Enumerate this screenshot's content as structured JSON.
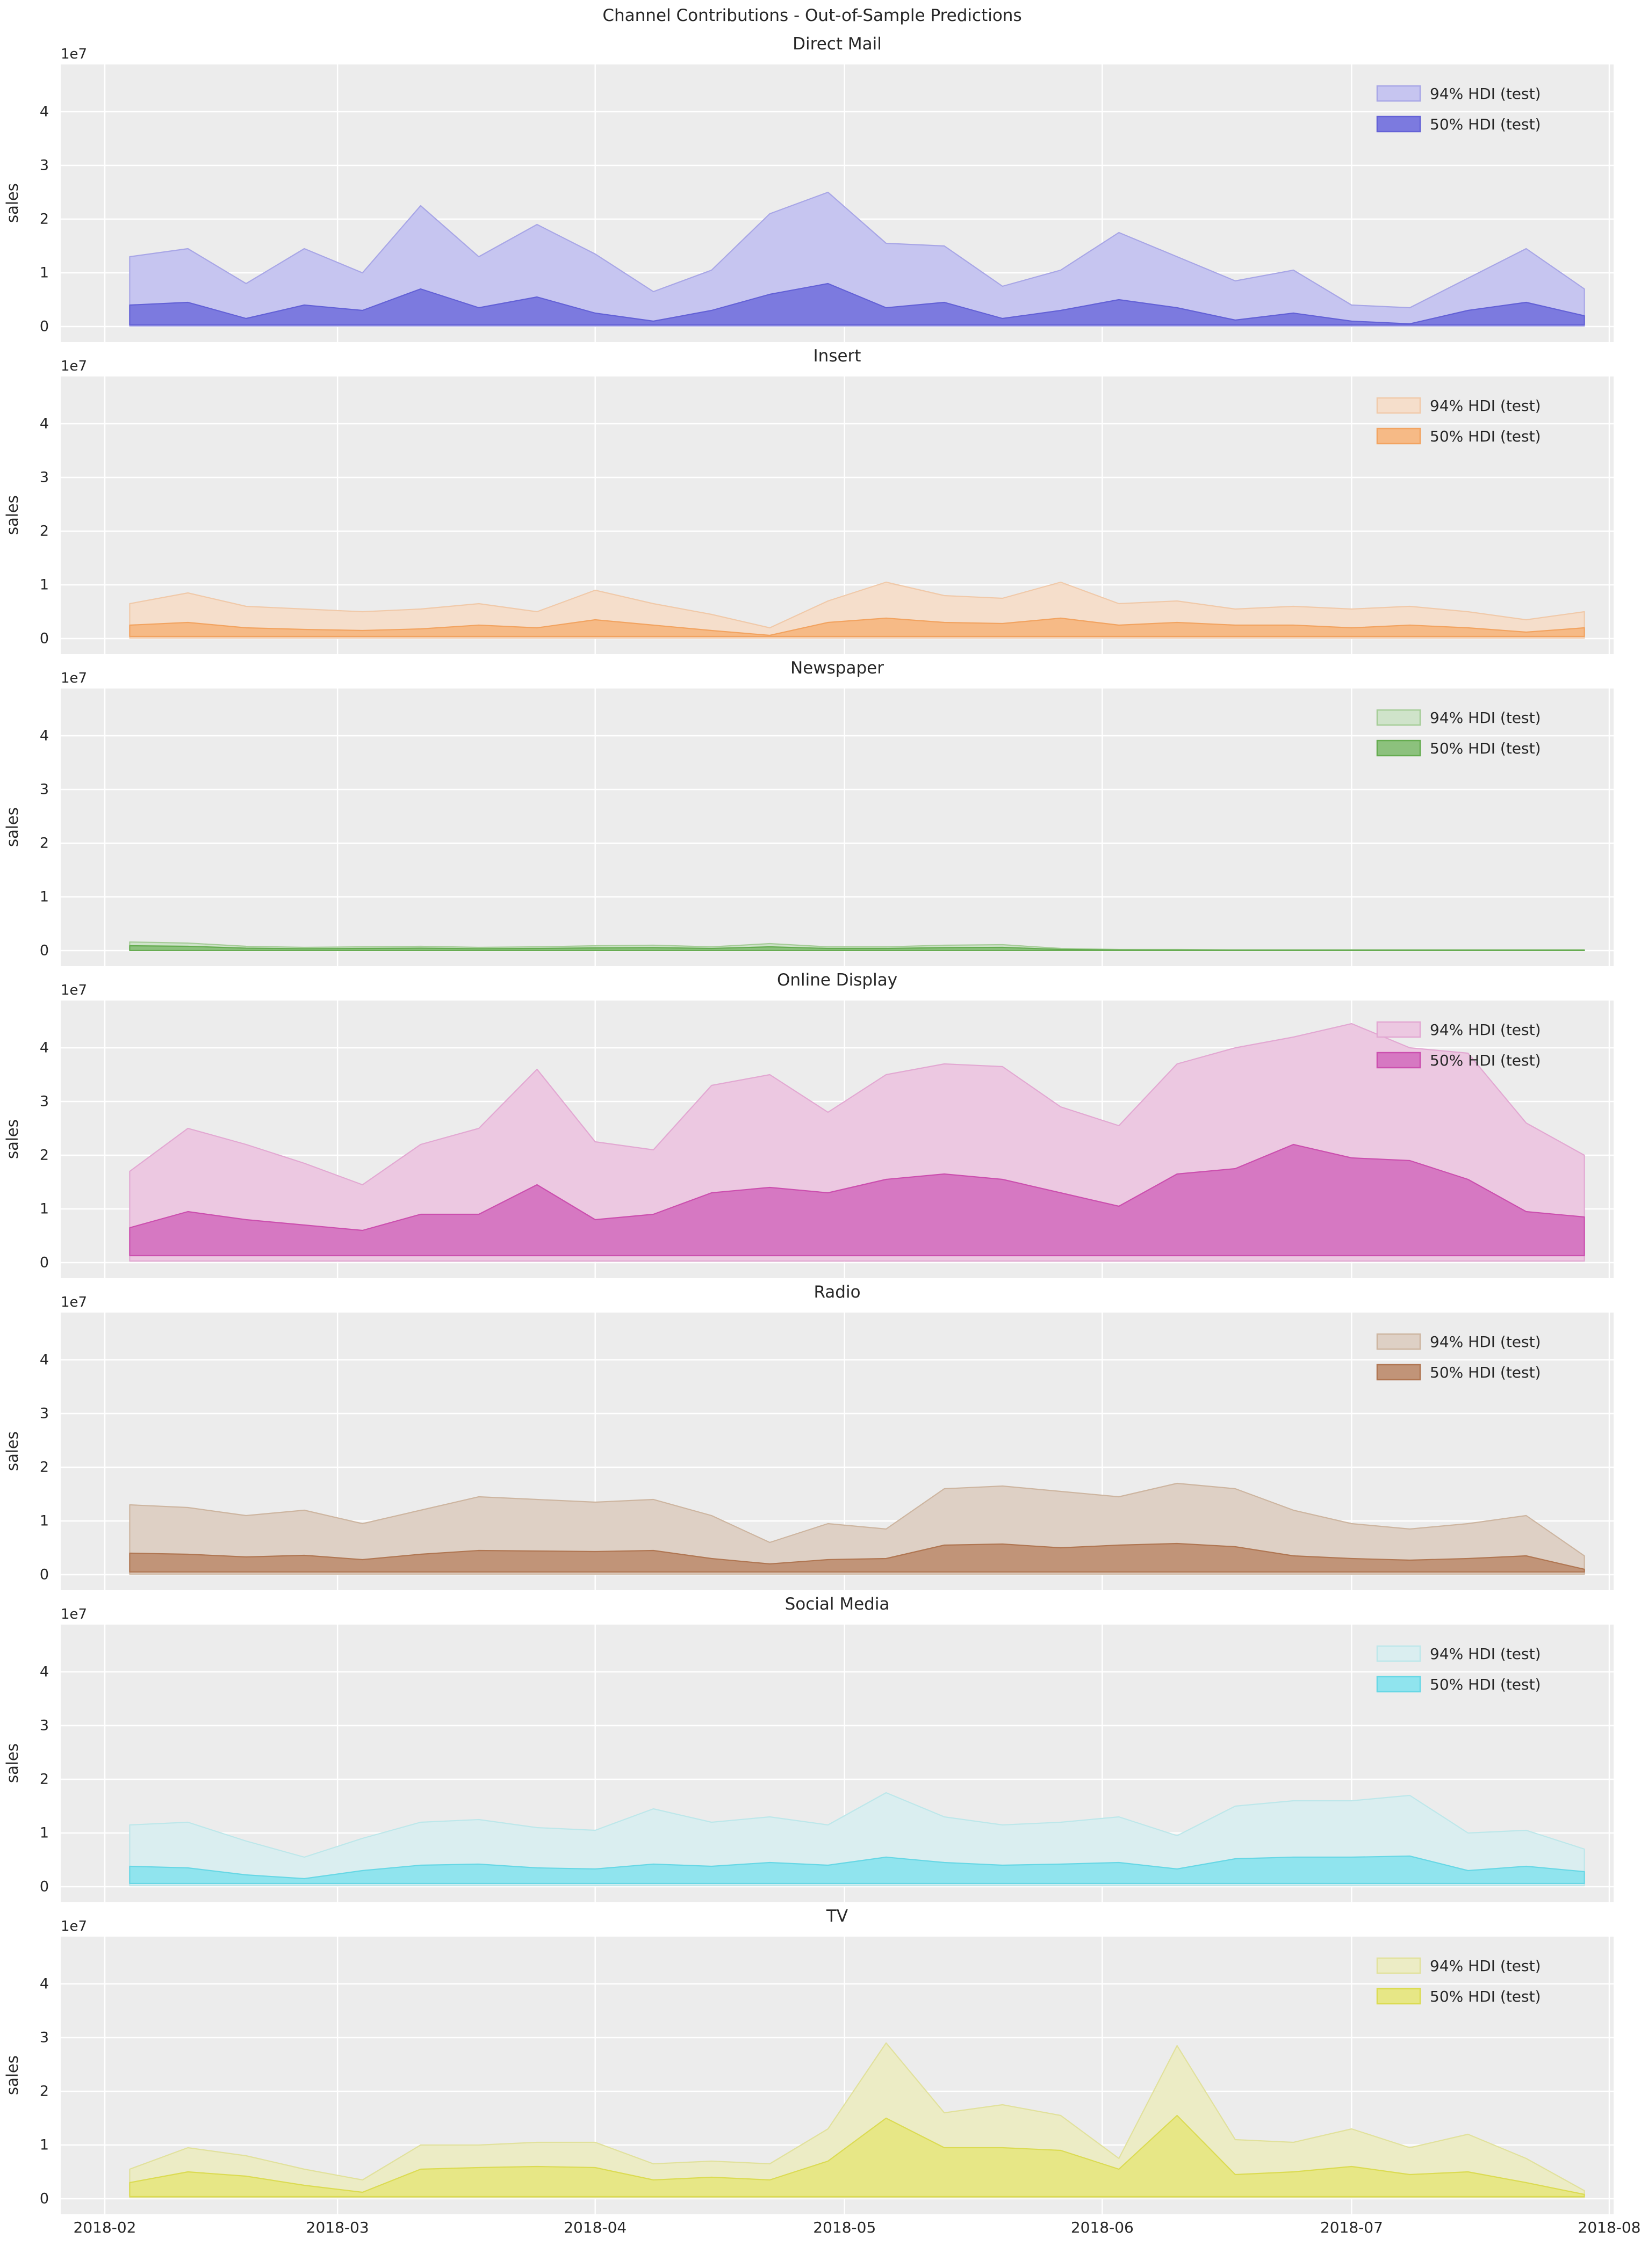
{
  "figure": {
    "title": "Channel Contributions - Out-of-Sample Predictions"
  },
  "style": {
    "plot_bg": "#ececec",
    "grid_color": "#ffffff",
    "text_color": "#262626",
    "fig_bg": "#ffffff"
  },
  "legend": {
    "labels": [
      "94% HDI (test)",
      "50% HDI (test)"
    ]
  },
  "axes": {
    "ylabel": "sales",
    "y_offset_label": "1e7",
    "y_unit_multiplier": "1e7",
    "yticks": [
      0,
      1,
      2,
      3,
      4
    ],
    "x_range": [
      "2018-02-01",
      "2018-08-01"
    ],
    "xticks": [
      {
        "label": "2018-02",
        "date": "2018-02-01"
      },
      {
        "label": "2018-03",
        "date": "2018-03-01"
      },
      {
        "label": "2018-04",
        "date": "2018-04-01"
      },
      {
        "label": "2018-05",
        "date": "2018-05-01"
      },
      {
        "label": "2018-06",
        "date": "2018-06-01"
      },
      {
        "label": "2018-07",
        "date": "2018-07-01"
      },
      {
        "label": "2018-08",
        "date": "2018-08-01"
      }
    ],
    "x_dates": [
      "2018-02-04",
      "2018-02-11",
      "2018-02-18",
      "2018-02-25",
      "2018-03-04",
      "2018-03-11",
      "2018-03-18",
      "2018-03-25",
      "2018-04-01",
      "2018-04-08",
      "2018-04-15",
      "2018-04-22",
      "2018-04-29",
      "2018-05-06",
      "2018-05-13",
      "2018-05-20",
      "2018-05-27",
      "2018-06-03",
      "2018-06-10",
      "2018-06-17",
      "2018-06-24",
      "2018-07-01",
      "2018-07-08",
      "2018-07-15",
      "2018-07-22",
      "2018-07-29"
    ]
  },
  "chart_data": [
    {
      "type": "area",
      "title": "Direct Mail",
      "ylabel": "sales",
      "ylim": [
        -0.29,
        4.88
      ],
      "series": [
        {
          "name": "94% HDI (test)",
          "fill": "#c6c5f0",
          "edge": "#a8a6e6",
          "lower": 0.01,
          "upper": [
            1.3,
            1.45,
            0.8,
            1.45,
            1.0,
            2.25,
            1.3,
            1.9,
            1.35,
            0.65,
            1.05,
            2.1,
            2.5,
            1.55,
            1.5,
            0.75,
            1.05,
            1.75,
            1.3,
            0.85,
            1.05,
            0.4,
            0.35,
            0.9,
            1.45,
            0.7
          ]
        },
        {
          "name": "50% HDI (test)",
          "fill": "#7c7adf",
          "edge": "#6361d6",
          "lower": 0.03,
          "upper": [
            0.4,
            0.45,
            0.15,
            0.4,
            0.3,
            0.7,
            0.35,
            0.55,
            0.25,
            0.1,
            0.3,
            0.6,
            0.8,
            0.35,
            0.45,
            0.15,
            0.3,
            0.5,
            0.35,
            0.12,
            0.25,
            0.1,
            0.05,
            0.3,
            0.45,
            0.2
          ]
        }
      ]
    },
    {
      "type": "area",
      "title": "Insert",
      "ylabel": "sales",
      "ylim": [
        -0.29,
        4.88
      ],
      "series": [
        {
          "name": "94% HDI (test)",
          "fill": "#f5decb",
          "edge": "#f0c9a9",
          "lower": 0.01,
          "upper": [
            0.65,
            0.85,
            0.6,
            0.55,
            0.5,
            0.55,
            0.65,
            0.5,
            0.9,
            0.65,
            0.45,
            0.2,
            0.7,
            1.05,
            0.8,
            0.75,
            1.05,
            0.65,
            0.7,
            0.55,
            0.6,
            0.55,
            0.6,
            0.5,
            0.35,
            0.5
          ]
        },
        {
          "name": "50% HDI (test)",
          "fill": "#f6ba86",
          "edge": "#f2a360",
          "lower": 0.04,
          "upper": [
            0.25,
            0.3,
            0.2,
            0.17,
            0.15,
            0.18,
            0.25,
            0.2,
            0.35,
            0.25,
            0.15,
            0.06,
            0.3,
            0.38,
            0.3,
            0.28,
            0.38,
            0.25,
            0.3,
            0.25,
            0.25,
            0.2,
            0.25,
            0.2,
            0.12,
            0.2
          ]
        }
      ]
    },
    {
      "type": "area",
      "title": "Newspaper",
      "ylabel": "sales",
      "ylim": [
        -0.29,
        4.88
      ],
      "series": [
        {
          "name": "94% HDI (test)",
          "fill": "#cfe3ca",
          "edge": "#a5cc97",
          "lower": 0.001,
          "upper": [
            0.16,
            0.14,
            0.08,
            0.06,
            0.07,
            0.08,
            0.06,
            0.07,
            0.09,
            0.1,
            0.07,
            0.13,
            0.07,
            0.07,
            0.1,
            0.11,
            0.04,
            0.02,
            0.02,
            0.015,
            0.015,
            0.015,
            0.015,
            0.015,
            0.015,
            0.015
          ]
        },
        {
          "name": "50% HDI (test)",
          "fill": "#8cc17d",
          "edge": "#64ab4f",
          "lower": 0.002,
          "upper": [
            0.09,
            0.08,
            0.045,
            0.035,
            0.04,
            0.045,
            0.035,
            0.04,
            0.05,
            0.055,
            0.04,
            0.07,
            0.04,
            0.04,
            0.055,
            0.06,
            0.022,
            0.012,
            0.01,
            0.008,
            0.008,
            0.008,
            0.008,
            0.008,
            0.008,
            0.008
          ]
        }
      ]
    },
    {
      "type": "area",
      "title": "Online Display",
      "ylabel": "sales",
      "ylim": [
        -0.29,
        4.88
      ],
      "series": [
        {
          "name": "94% HDI (test)",
          "fill": "#ecc8e1",
          "edge": "#e2a8d2",
          "lower": 0.03,
          "upper": [
            1.7,
            2.5,
            2.2,
            1.85,
            1.45,
            2.2,
            2.5,
            3.6,
            2.25,
            2.1,
            3.3,
            3.5,
            2.8,
            3.5,
            3.7,
            3.65,
            2.9,
            2.55,
            3.7,
            4.0,
            4.2,
            4.45,
            4.0,
            3.9,
            2.6,
            2.0
          ]
        },
        {
          "name": "50% HDI (test)",
          "fill": "#d678c2",
          "edge": "#cb4fae",
          "lower": 0.13,
          "upper": [
            0.65,
            0.95,
            0.8,
            0.7,
            0.6,
            0.9,
            0.9,
            1.45,
            0.8,
            0.9,
            1.3,
            1.4,
            1.3,
            1.55,
            1.65,
            1.55,
            1.3,
            1.05,
            1.65,
            1.75,
            2.2,
            1.95,
            1.9,
            1.55,
            0.95,
            0.85
          ]
        }
      ]
    },
    {
      "type": "area",
      "title": "Radio",
      "ylabel": "sales",
      "ylim": [
        -0.29,
        4.88
      ],
      "series": [
        {
          "name": "94% HDI (test)",
          "fill": "#ded0c5",
          "edge": "#cdb5a0",
          "lower": 0.01,
          "upper": [
            1.3,
            1.25,
            1.1,
            1.2,
            0.95,
            1.2,
            1.45,
            1.4,
            1.35,
            1.4,
            1.1,
            0.6,
            0.95,
            0.85,
            1.6,
            1.65,
            1.55,
            1.45,
            1.7,
            1.6,
            1.2,
            0.95,
            0.85,
            0.95,
            1.1,
            0.35
          ]
        },
        {
          "name": "50% HDI (test)",
          "fill": "#c19478",
          "edge": "#b07652",
          "lower": 0.05,
          "upper": [
            0.4,
            0.38,
            0.33,
            0.36,
            0.28,
            0.38,
            0.45,
            0.44,
            0.43,
            0.45,
            0.3,
            0.2,
            0.28,
            0.3,
            0.55,
            0.57,
            0.5,
            0.55,
            0.58,
            0.52,
            0.35,
            0.3,
            0.27,
            0.3,
            0.35,
            0.1
          ]
        }
      ]
    },
    {
      "type": "area",
      "title": "Social Media",
      "ylabel": "sales",
      "ylim": [
        -0.29,
        4.88
      ],
      "series": [
        {
          "name": "94% HDI (test)",
          "fill": "#daeef0",
          "edge": "#bde7ea",
          "lower": 0.02,
          "upper": [
            1.15,
            1.2,
            0.85,
            0.55,
            0.9,
            1.2,
            1.25,
            1.1,
            1.05,
            1.45,
            1.2,
            1.3,
            1.15,
            1.75,
            1.3,
            1.15,
            1.2,
            1.3,
            0.95,
            1.5,
            1.6,
            1.6,
            1.7,
            1.0,
            1.05,
            0.7
          ]
        },
        {
          "name": "50% HDI (test)",
          "fill": "#90e4ee",
          "edge": "#67d7e5",
          "lower": 0.06,
          "upper": [
            0.38,
            0.35,
            0.22,
            0.15,
            0.3,
            0.4,
            0.42,
            0.35,
            0.33,
            0.42,
            0.38,
            0.45,
            0.4,
            0.55,
            0.45,
            0.4,
            0.42,
            0.45,
            0.33,
            0.52,
            0.55,
            0.55,
            0.57,
            0.3,
            0.38,
            0.28
          ]
        }
      ]
    },
    {
      "type": "area",
      "title": "TV",
      "ylabel": "sales",
      "ylim": [
        -0.29,
        4.88
      ],
      "series": [
        {
          "name": "94% HDI (test)",
          "fill": "#ececc5",
          "edge": "#e1e19c",
          "lower": 0.02,
          "upper": [
            0.55,
            0.95,
            0.8,
            0.55,
            0.35,
            1.0,
            1.0,
            1.05,
            1.05,
            0.65,
            0.7,
            0.65,
            1.3,
            2.9,
            1.6,
            1.75,
            1.55,
            0.75,
            2.85,
            1.1,
            1.05,
            1.3,
            0.95,
            1.2,
            0.75,
            0.15
          ]
        },
        {
          "name": "50% HDI (test)",
          "fill": "#e7e786",
          "edge": "#dbdb52",
          "lower": 0.04,
          "upper": [
            0.3,
            0.5,
            0.42,
            0.25,
            0.12,
            0.55,
            0.58,
            0.6,
            0.58,
            0.35,
            0.4,
            0.35,
            0.7,
            1.5,
            0.95,
            0.95,
            0.9,
            0.55,
            1.55,
            0.45,
            0.5,
            0.6,
            0.45,
            0.5,
            0.3,
            0.08
          ]
        }
      ]
    }
  ]
}
